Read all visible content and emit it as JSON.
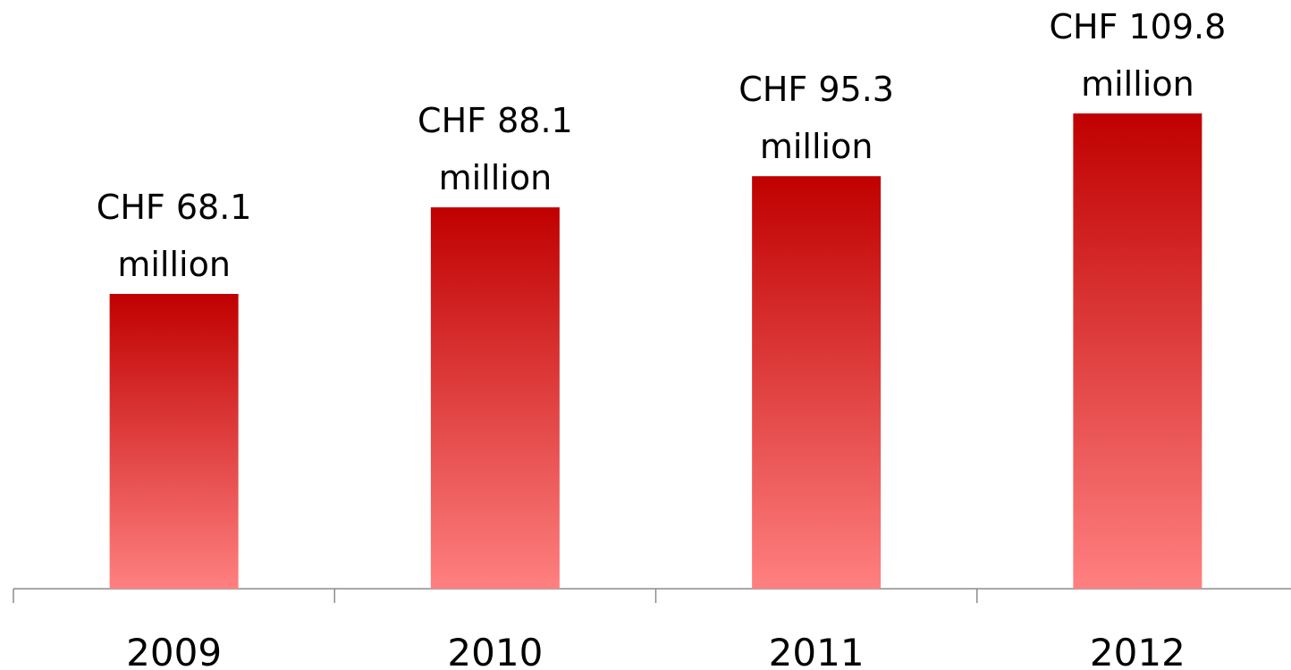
{
  "chart_data": {
    "type": "bar",
    "categories": [
      "2009",
      "2010",
      "2011",
      "2012"
    ],
    "values": [
      68.1,
      88.1,
      95.3,
      109.8
    ],
    "value_labels": [
      "CHF 68.1 million",
      "CHF 88.1 million",
      "CHF 95.3 million",
      "CHF 109.8 million"
    ],
    "color": "#c00000",
    "ylim": [
      0,
      136
    ]
  }
}
